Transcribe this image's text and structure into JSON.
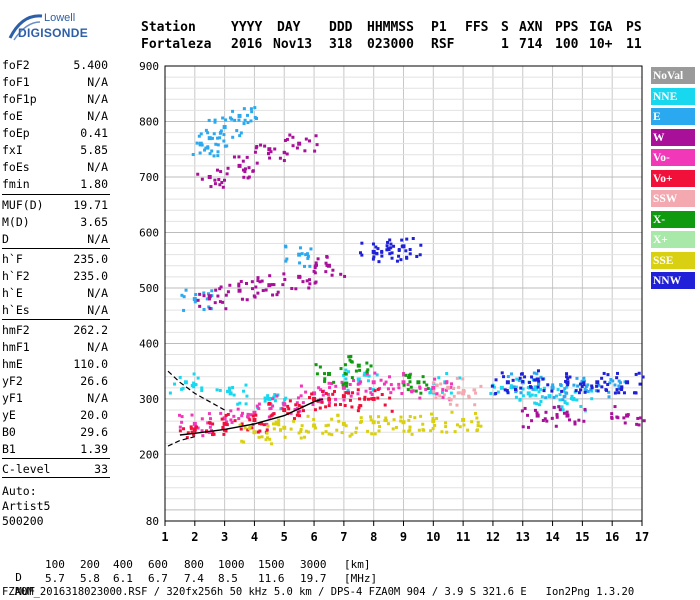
{
  "logo": {
    "line1": "Lowell",
    "line2": "DIGISONDE"
  },
  "header": {
    "labels": [
      "Station",
      "YYYY",
      "DAY",
      "DDD",
      "HHMMSS",
      "P1",
      "FFS",
      "S",
      "AXN",
      "PPS",
      "IGA",
      "PS"
    ],
    "values": [
      "Fortaleza",
      "2016",
      "Nov13",
      "318",
      "023000",
      "RSF",
      "1",
      "714",
      "100",
      "10+",
      "11"
    ]
  },
  "params": [
    {
      "k": "foF2",
      "v": "5.400"
    },
    {
      "k": "foF1",
      "v": "N/A"
    },
    {
      "k": "foF1p",
      "v": "N/A"
    },
    {
      "k": "foE",
      "v": "N/A"
    },
    {
      "k": "foEp",
      "v": "0.41"
    },
    {
      "k": "fxI",
      "v": "5.85"
    },
    {
      "k": "foEs",
      "v": "N/A"
    },
    {
      "k": "fmin",
      "v": "1.80"
    },
    {
      "k": "MUF(D)",
      "v": "19.71"
    },
    {
      "k": "M(D)",
      "v": "3.65"
    },
    {
      "k": "D",
      "v": "N/A"
    },
    {
      "k": "h`F",
      "v": "235.0"
    },
    {
      "k": "h`F2",
      "v": "235.0"
    },
    {
      "k": "h`E",
      "v": "N/A"
    },
    {
      "k": "h`Es",
      "v": "N/A"
    },
    {
      "k": "hmF2",
      "v": "262.2"
    },
    {
      "k": "hmF1",
      "v": "N/A"
    },
    {
      "k": "hmE",
      "v": "110.0"
    },
    {
      "k": "yF2",
      "v": "26.6"
    },
    {
      "k": "yF1",
      "v": "N/A"
    },
    {
      "k": "yE",
      "v": "20.0"
    },
    {
      "k": "B0",
      "v": "29.6"
    },
    {
      "k": "B1",
      "v": "1.39"
    },
    {
      "k": "C-level",
      "v": "33"
    }
  ],
  "auto": {
    "line1": "Auto:",
    "line2": "Artist5",
    "line3": "500200"
  },
  "legend": [
    {
      "label": "NoVal",
      "color": "#9a9a9a"
    },
    {
      "label": "NNE",
      "color": "#18d8f0"
    },
    {
      "label": "E",
      "color": "#2aa8f0"
    },
    {
      "label": "W",
      "color": "#a8109a"
    },
    {
      "label": "Vo-",
      "color": "#f038b8"
    },
    {
      "label": "Vo+",
      "color": "#f0103a"
    },
    {
      "label": "SSW",
      "color": "#f4a8b0"
    },
    {
      "label": "X-",
      "color": "#109a10"
    },
    {
      "label": "X+",
      "color": "#a8e8a8"
    },
    {
      "label": "SSE",
      "color": "#d8d010"
    },
    {
      "label": "NNW",
      "color": "#2020d8"
    }
  ],
  "chart_data": {
    "type": "scatter",
    "title": "",
    "xlabel": "",
    "ylabel": "",
    "xlim": [
      1,
      17
    ],
    "ylim": [
      80,
      900
    ],
    "x_ticks": [
      "1",
      "2",
      "3",
      "4",
      "5",
      "6",
      "7",
      "8",
      "9",
      "10",
      "11",
      "12",
      "13",
      "14",
      "15",
      "16",
      "17"
    ],
    "y_ticks": [
      "80",
      "200",
      "300",
      "400",
      "500",
      "600",
      "700",
      "800",
      "900"
    ],
    "grid": true,
    "series": [
      {
        "name": "NNE",
        "points": [
          [
            1.7,
            330
          ],
          [
            3.2,
            310
          ],
          [
            4.5,
            300
          ],
          [
            7.5,
            335
          ],
          [
            10.4,
            330
          ],
          [
            12.3,
            320
          ],
          [
            13.2,
            310
          ],
          [
            13.9,
            305
          ],
          [
            14.7,
            300
          ]
        ]
      },
      {
        "name": "E",
        "points": [
          [
            2.2,
            760
          ],
          [
            2.5,
            770
          ],
          [
            3.0,
            790
          ],
          [
            3.5,
            810
          ],
          [
            2.0,
            480
          ],
          [
            5.5,
            560
          ],
          [
            13.0,
            330
          ],
          [
            14.0,
            320
          ],
          [
            15.0,
            330
          ],
          [
            16.3,
            320
          ]
        ]
      },
      {
        "name": "W",
        "points": [
          [
            2.5,
            700
          ],
          [
            3.5,
            720
          ],
          [
            4.5,
            750
          ],
          [
            5.5,
            760
          ],
          [
            2.5,
            485
          ],
          [
            3.5,
            495
          ],
          [
            4.5,
            505
          ],
          [
            5.5,
            520
          ],
          [
            6.5,
            540
          ],
          [
            13.5,
            270
          ],
          [
            14.5,
            270
          ],
          [
            16.5,
            270
          ]
        ]
      },
      {
        "name": "Vo-",
        "points": [
          [
            2.0,
            255
          ],
          [
            3.0,
            265
          ],
          [
            4.0,
            275
          ],
          [
            5.0,
            290
          ],
          [
            6.0,
            310
          ],
          [
            7.0,
            320
          ],
          [
            8.0,
            330
          ],
          [
            9.0,
            330
          ],
          [
            10.0,
            320
          ]
        ]
      },
      {
        "name": "Vo+",
        "points": [
          [
            2.0,
            245
          ],
          [
            3.0,
            255
          ],
          [
            4.0,
            262
          ],
          [
            5.0,
            280
          ],
          [
            6.0,
            300
          ],
          [
            7.0,
            305
          ],
          [
            8.0,
            300
          ]
        ]
      },
      {
        "name": "SSW",
        "points": [
          [
            10.5,
            320
          ],
          [
            11.0,
            310
          ]
        ]
      },
      {
        "name": "X-",
        "points": [
          [
            6.5,
            345
          ],
          [
            7.5,
            360
          ],
          [
            9.5,
            330
          ]
        ]
      },
      {
        "name": "SSE",
        "points": [
          [
            4.0,
            240
          ],
          [
            5.0,
            248
          ],
          [
            6.0,
            252
          ],
          [
            7.0,
            255
          ],
          [
            8.0,
            258
          ],
          [
            9.0,
            258
          ],
          [
            10.0,
            260
          ],
          [
            11.0,
            262
          ]
        ]
      },
      {
        "name": "NNW",
        "points": [
          [
            8.0,
            565
          ],
          [
            8.5,
            570
          ],
          [
            9.0,
            575
          ],
          [
            12.5,
            330
          ],
          [
            13.5,
            335
          ],
          [
            14.5,
            330
          ],
          [
            15.5,
            330
          ],
          [
            16.5,
            330
          ]
        ]
      }
    ],
    "curves": {
      "upper_dashed": [
        [
          1.1,
          350
        ],
        [
          1.5,
          330
        ],
        [
          2.0,
          310
        ],
        [
          2.5,
          295
        ],
        [
          3.0,
          280
        ]
      ],
      "lower_dashed": [
        [
          1.1,
          215
        ],
        [
          1.5,
          225
        ],
        [
          2.0,
          232
        ]
      ],
      "solid": [
        [
          1.5,
          235
        ],
        [
          2.0,
          238
        ],
        [
          3.0,
          245
        ],
        [
          4.0,
          255
        ],
        [
          5.0,
          270
        ],
        [
          6.0,
          295
        ],
        [
          6.3,
          300
        ]
      ]
    }
  },
  "footer": {
    "d_label": "D",
    "d_values": [
      "100",
      "200",
      "400",
      "600",
      "800",
      "1000",
      "1500",
      "3000",
      "[km]"
    ],
    "muf_label": "MUF",
    "muf_values": [
      "5.7",
      "5.8",
      "6.1",
      "6.7",
      "7.4",
      "8.5",
      "11.6",
      "19.7",
      "[MHz]"
    ],
    "file_line": "FZA0M_2016318023000.RSF / 320fx256h 50 kHz 5.0 km / DPS-4 FZA0M 904 / 3.9 S 321.6 E   Ion2Png 1.3.20"
  }
}
